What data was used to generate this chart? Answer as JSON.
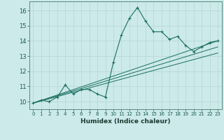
{
  "title": "",
  "xlabel": "Humidex (Indice chaleur)",
  "ylabel": "",
  "bg_color": "#cceaea",
  "grid_color": "#b8d8d8",
  "line_color": "#1a6e60",
  "xlim": [
    -0.5,
    23.5
  ],
  "ylim": [
    9.5,
    16.6
  ],
  "xticks": [
    0,
    1,
    2,
    3,
    4,
    5,
    6,
    7,
    8,
    9,
    10,
    11,
    12,
    13,
    14,
    15,
    16,
    17,
    18,
    19,
    20,
    21,
    22,
    23
  ],
  "yticks": [
    10,
    11,
    12,
    13,
    14,
    15,
    16
  ],
  "series": [
    [
      0,
      9.9
    ],
    [
      1,
      10.1
    ],
    [
      2,
      10.0
    ],
    [
      3,
      10.3
    ],
    [
      4,
      11.1
    ],
    [
      5,
      10.5
    ],
    [
      6,
      10.8
    ],
    [
      7,
      10.8
    ],
    [
      8,
      10.5
    ],
    [
      9,
      10.3
    ],
    [
      10,
      12.6
    ],
    [
      11,
      14.4
    ],
    [
      12,
      15.5
    ],
    [
      13,
      16.2
    ],
    [
      14,
      15.3
    ],
    [
      15,
      14.6
    ],
    [
      16,
      14.6
    ],
    [
      17,
      14.1
    ],
    [
      18,
      14.3
    ],
    [
      19,
      13.7
    ],
    [
      20,
      13.3
    ],
    [
      21,
      13.6
    ],
    [
      22,
      13.9
    ],
    [
      23,
      14.0
    ]
  ],
  "linear_lines": [
    [
      [
        0,
        9.9
      ],
      [
        23,
        14.0
      ]
    ],
    [
      [
        0,
        9.9
      ],
      [
        23,
        13.6
      ]
    ],
    [
      [
        0,
        9.9
      ],
      [
        23,
        13.2
      ]
    ]
  ]
}
